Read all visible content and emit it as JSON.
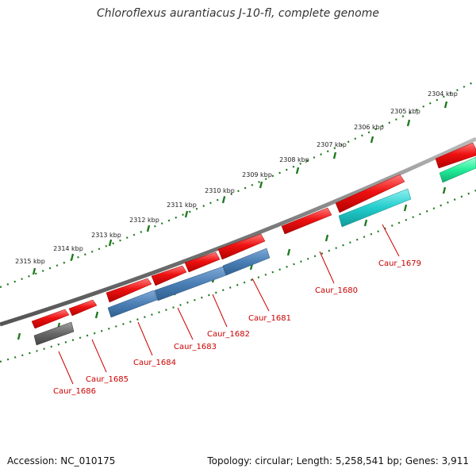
{
  "title": "Chloroflexus aurantiacus J-10-fl, complete genome",
  "accession": "Accession: NC_010175",
  "summary": "Topology: circular; Length: 5,258,541 bp; Genes: 3,911",
  "ruler": {
    "labels": [
      "2304 kbp",
      "2305 kbp",
      "2306 kbp",
      "2307 kbp",
      "2308 kbp",
      "2309 kbp",
      "2310 kbp",
      "2311 kbp",
      "2312 kbp",
      "2313 kbp",
      "2314 kbp",
      "2315 kbp"
    ]
  },
  "genes": [
    {
      "name": "Caur_1679",
      "color": "#22cccc"
    },
    {
      "name": "Caur_1680",
      "color": "#ee1111"
    },
    {
      "name": "Caur_1681",
      "color": "#4a7fb5"
    },
    {
      "name": "Caur_1682",
      "color": "#4a7fb5"
    },
    {
      "name": "Caur_1683",
      "color": "#4a7fb5"
    },
    {
      "name": "Caur_1684",
      "color": "#4a7fb5"
    },
    {
      "name": "Caur_1685",
      "color": "#ee1111"
    },
    {
      "name": "Caur_1686",
      "color": "#666666"
    }
  ],
  "colors": {
    "backbone": "#888888",
    "tick": "#1f7a1f",
    "label": "#cc0000",
    "forward_red": "#ee1111",
    "teal": "#22cccc",
    "green": "#22ee99",
    "blue": "#4a7fb5",
    "gray": "#666666"
  }
}
